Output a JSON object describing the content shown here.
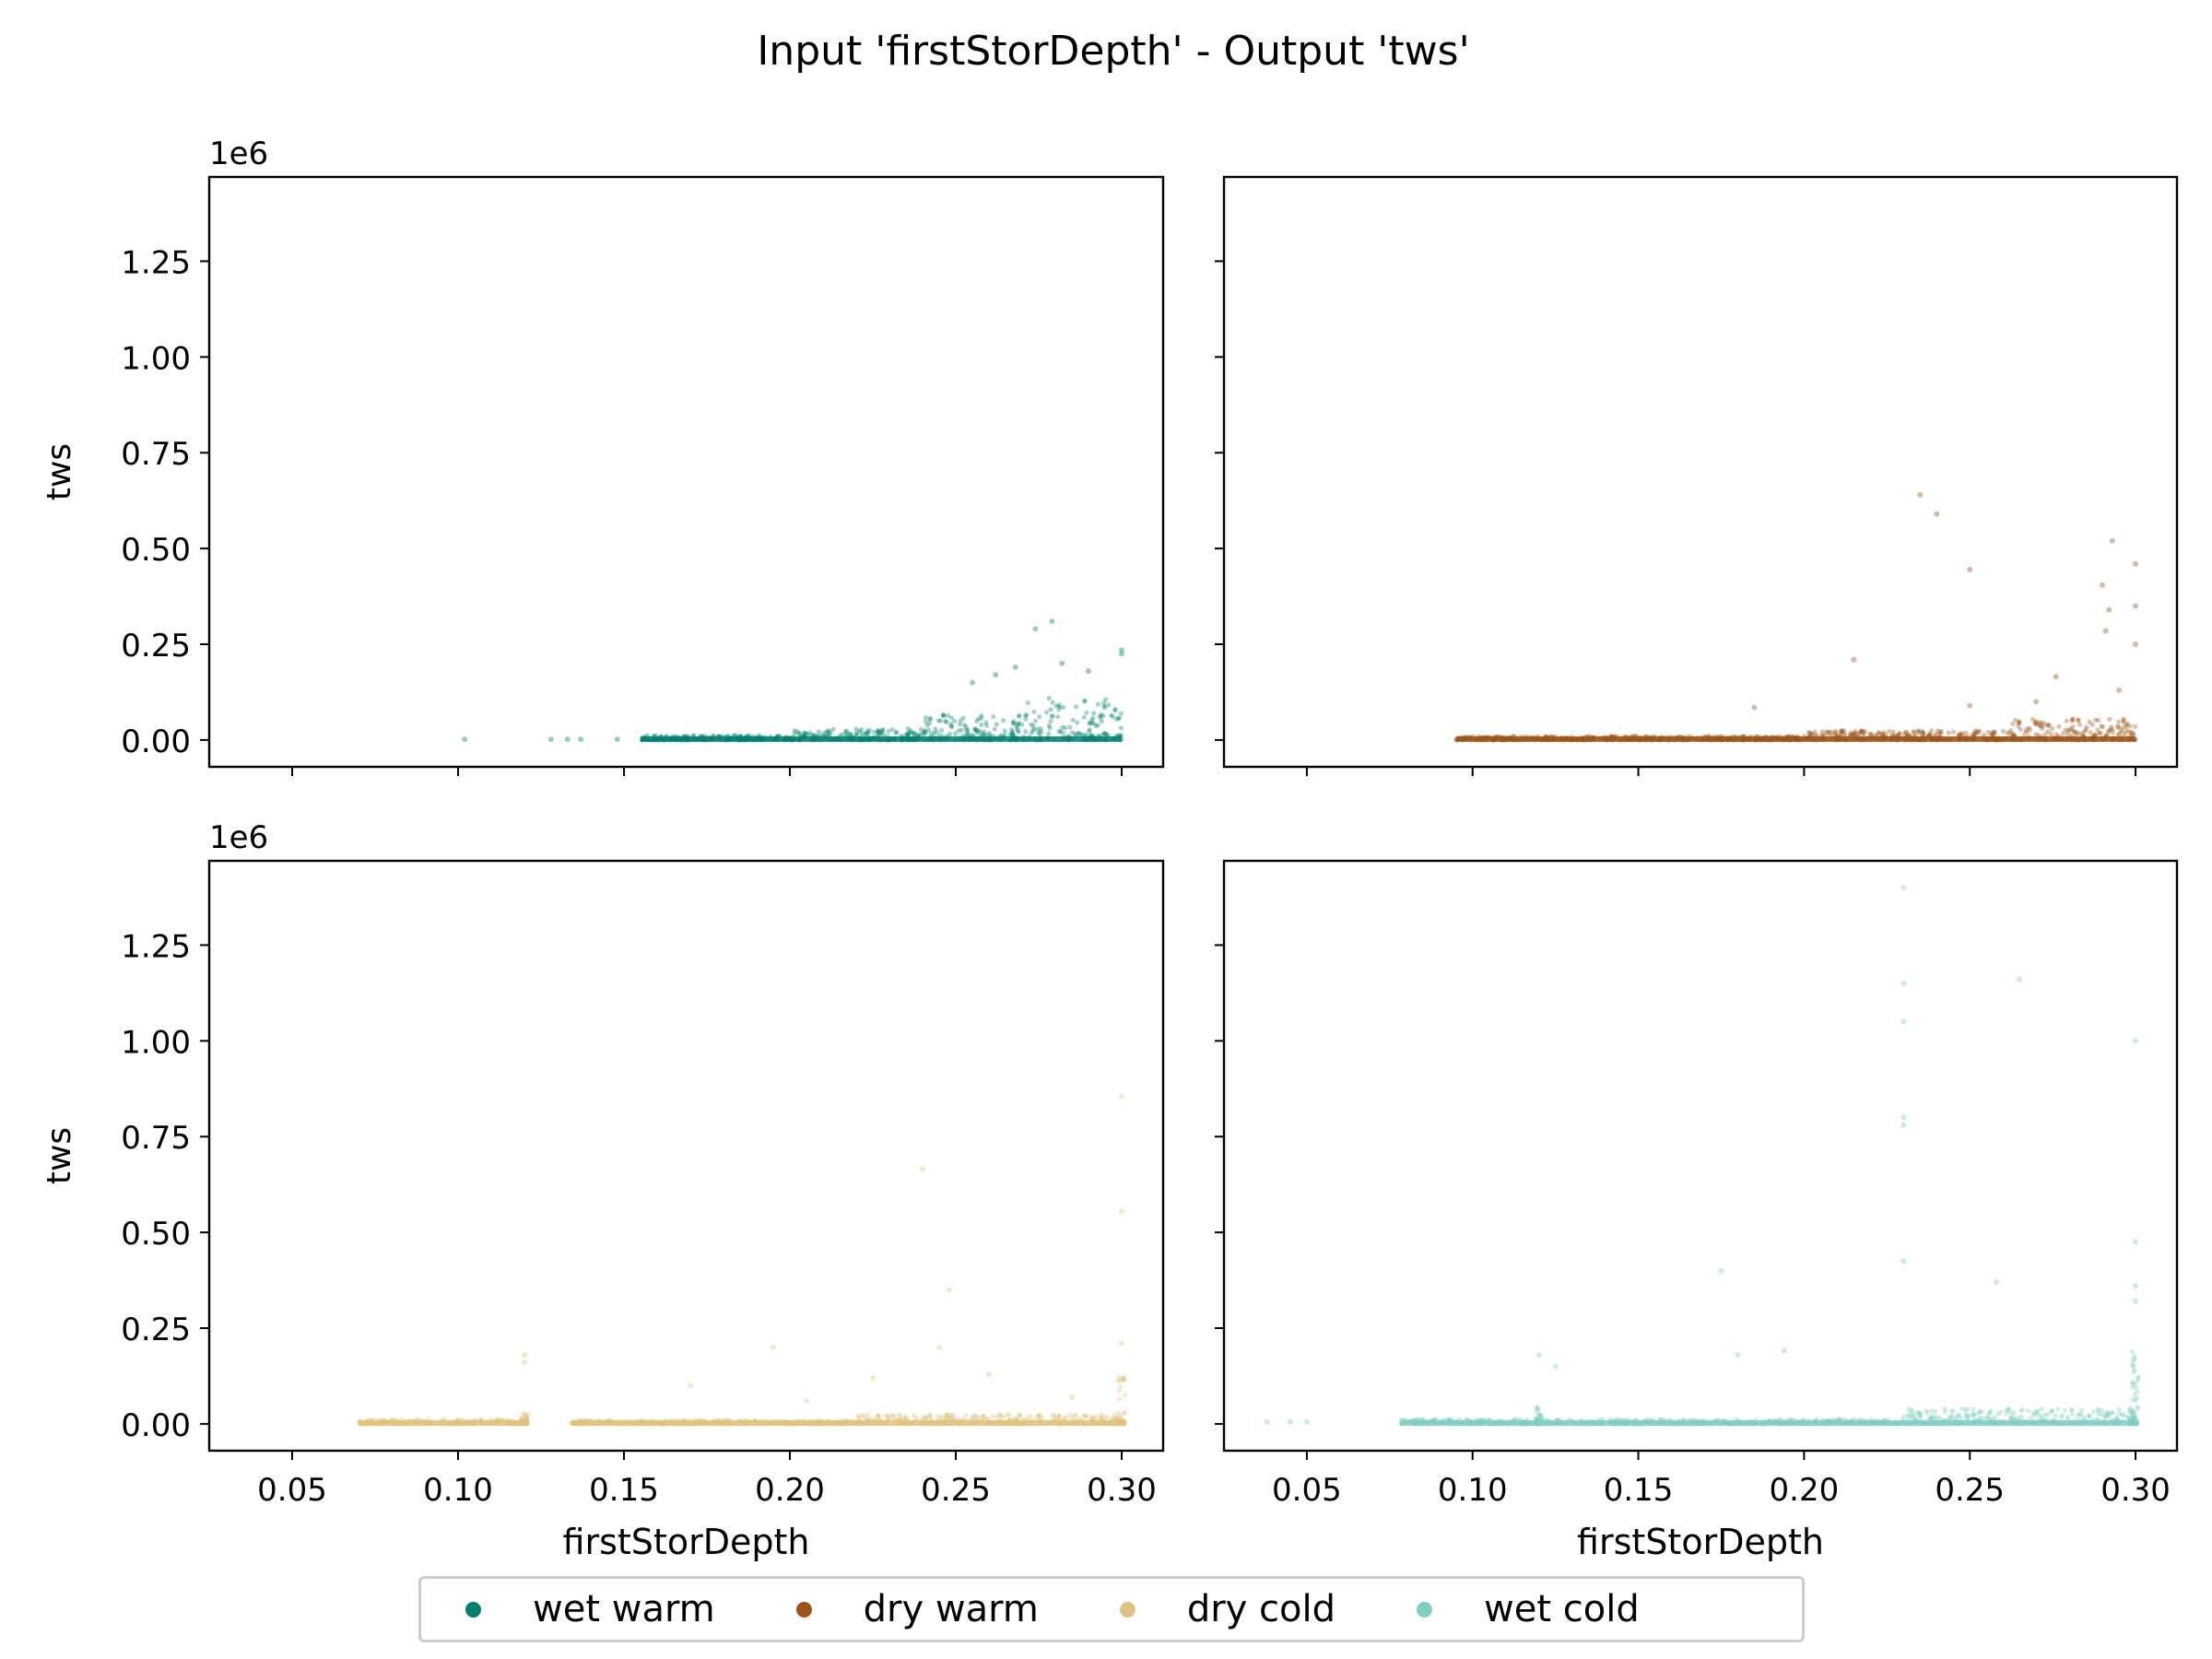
{
  "title": "Input 'firstStorDepth' - Output 'tws'",
  "colors": {
    "wet_warm": "#00806b",
    "dry_warm": "#9c5418",
    "dry_cold": "#dfc27d",
    "wet_cold": "#80cdc1"
  },
  "legend": [
    {
      "label": "wet warm",
      "color": "#00806b"
    },
    {
      "label": "dry warm",
      "color": "#9c5418"
    },
    {
      "label": "dry cold",
      "color": "#dfc27d"
    },
    {
      "label": "wet cold",
      "color": "#80cdc1"
    }
  ],
  "chart_data": {
    "type": "scatter",
    "title": "Input 'firstStorDepth' - Output 'tws'",
    "layout": "2x2 grid, shared x and y axes",
    "xlabel": "firstStorDepth",
    "ylabel": "tws",
    "y_offset_label": "1e6",
    "xlim": [
      0.025,
      0.3125
    ],
    "ylim": [
      -0.07,
      1.47
    ],
    "x_ticks": [
      0.05,
      0.1,
      0.15,
      0.2,
      0.25,
      0.3
    ],
    "x_tick_labels": [
      "0.05",
      "0.10",
      "0.15",
      "0.20",
      "0.25",
      "0.30"
    ],
    "y_ticks": [
      0.0,
      0.25,
      0.5,
      0.75,
      1.0,
      1.25
    ],
    "y_tick_labels": [
      "0.00",
      "0.25",
      "0.50",
      "0.75",
      "1.00",
      "1.25"
    ],
    "grid": false,
    "legend_position": "bottom-center",
    "panels": [
      {
        "series": "wet warm",
        "color": "#00806b",
        "density_ranges": [
          {
            "x": [
              0.155,
              0.2
            ],
            "y": [
              0.0,
              0.012
            ]
          },
          {
            "x": [
              0.2,
              0.24
            ],
            "y": [
              0.0,
              0.03
            ]
          },
          {
            "x": [
              0.24,
              0.27
            ],
            "y": [
              0.0,
              0.07
            ]
          },
          {
            "x": [
              0.27,
              0.3
            ],
            "y": [
              0.0,
              0.11
            ]
          }
        ],
        "outliers": [
          {
            "x": 0.102,
            "y": 0.002
          },
          {
            "x": 0.128,
            "y": 0.002
          },
          {
            "x": 0.133,
            "y": 0.002
          },
          {
            "x": 0.137,
            "y": 0.002
          },
          {
            "x": 0.148,
            "y": 0.002
          },
          {
            "x": 0.274,
            "y": 0.29
          },
          {
            "x": 0.279,
            "y": 0.31
          },
          {
            "x": 0.3,
            "y": 0.235
          },
          {
            "x": 0.3,
            "y": 0.225
          },
          {
            "x": 0.268,
            "y": 0.19
          },
          {
            "x": 0.282,
            "y": 0.2
          },
          {
            "x": 0.262,
            "y": 0.17
          },
          {
            "x": 0.29,
            "y": 0.18
          },
          {
            "x": 0.255,
            "y": 0.15
          }
        ]
      },
      {
        "series": "dry warm",
        "color": "#9c5418",
        "density_ranges": [
          {
            "x": [
              0.095,
              0.2
            ],
            "y": [
              0.0,
              0.01
            ]
          },
          {
            "x": [
              0.2,
              0.26
            ],
            "y": [
              0.0,
              0.025
            ]
          },
          {
            "x": [
              0.26,
              0.3
            ],
            "y": [
              0.0,
              0.055
            ]
          }
        ],
        "outliers": [
          {
            "x": 0.235,
            "y": 0.64
          },
          {
            "x": 0.24,
            "y": 0.59
          },
          {
            "x": 0.293,
            "y": 0.52
          },
          {
            "x": 0.25,
            "y": 0.445
          },
          {
            "x": 0.3,
            "y": 0.46
          },
          {
            "x": 0.3,
            "y": 0.35
          },
          {
            "x": 0.29,
            "y": 0.405
          },
          {
            "x": 0.292,
            "y": 0.34
          },
          {
            "x": 0.291,
            "y": 0.285
          },
          {
            "x": 0.3,
            "y": 0.25
          },
          {
            "x": 0.215,
            "y": 0.21
          },
          {
            "x": 0.276,
            "y": 0.165
          },
          {
            "x": 0.185,
            "y": 0.085
          },
          {
            "x": 0.25,
            "y": 0.09
          },
          {
            "x": 0.27,
            "y": 0.1
          },
          {
            "x": 0.295,
            "y": 0.13
          }
        ]
      },
      {
        "series": "dry cold",
        "color": "#dfc27d",
        "density_ranges": [
          {
            "x": [
              0.07,
              0.12
            ],
            "y": [
              0.0,
              0.012
            ]
          },
          {
            "x": [
              0.119,
              0.121
            ],
            "y": [
              0.0,
              0.03
            ]
          },
          {
            "x": [
              0.134,
              0.22
            ],
            "y": [
              0.0,
              0.01
            ]
          },
          {
            "x": [
              0.22,
              0.3
            ],
            "y": [
              0.0,
              0.025
            ]
          },
          {
            "x": [
              0.299,
              0.301
            ],
            "y": [
              0.0,
              0.13
            ]
          }
        ],
        "outliers": [
          {
            "x": 0.3,
            "y": 0.855
          },
          {
            "x": 0.24,
            "y": 0.665
          },
          {
            "x": 0.3,
            "y": 0.555
          },
          {
            "x": 0.248,
            "y": 0.35
          },
          {
            "x": 0.3,
            "y": 0.21
          },
          {
            "x": 0.195,
            "y": 0.2
          },
          {
            "x": 0.12,
            "y": 0.18
          },
          {
            "x": 0.12,
            "y": 0.16
          },
          {
            "x": 0.245,
            "y": 0.2
          },
          {
            "x": 0.26,
            "y": 0.13
          },
          {
            "x": 0.225,
            "y": 0.12
          },
          {
            "x": 0.17,
            "y": 0.1
          },
          {
            "x": 0.285,
            "y": 0.07
          },
          {
            "x": 0.205,
            "y": 0.06
          }
        ]
      },
      {
        "series": "wet cold",
        "color": "#80cdc1",
        "density_ranges": [
          {
            "x": [
              0.078,
              0.12
            ],
            "y": [
              0.0,
              0.012
            ]
          },
          {
            "x": [
              0.119,
              0.121
            ],
            "y": [
              0.0,
              0.045
            ]
          },
          {
            "x": [
              0.12,
              0.23
            ],
            "y": [
              0.0,
              0.012
            ]
          },
          {
            "x": [
              0.23,
              0.3
            ],
            "y": [
              0.0,
              0.04
            ]
          },
          {
            "x": [
              0.299,
              0.301
            ],
            "y": [
              0.0,
              0.2
            ]
          }
        ],
        "outliers": [
          {
            "x": 0.23,
            "y": 1.4
          },
          {
            "x": 0.23,
            "y": 1.15
          },
          {
            "x": 0.265,
            "y": 1.16
          },
          {
            "x": 0.23,
            "y": 1.05
          },
          {
            "x": 0.3,
            "y": 1.0
          },
          {
            "x": 0.23,
            "y": 0.8
          },
          {
            "x": 0.23,
            "y": 0.78
          },
          {
            "x": 0.3,
            "y": 0.475
          },
          {
            "x": 0.23,
            "y": 0.425
          },
          {
            "x": 0.175,
            "y": 0.4
          },
          {
            "x": 0.3,
            "y": 0.36
          },
          {
            "x": 0.258,
            "y": 0.37
          },
          {
            "x": 0.3,
            "y": 0.32
          },
          {
            "x": 0.194,
            "y": 0.19
          },
          {
            "x": 0.18,
            "y": 0.18
          },
          {
            "x": 0.12,
            "y": 0.18
          },
          {
            "x": 0.125,
            "y": 0.15
          },
          {
            "x": 0.038,
            "y": 0.005
          },
          {
            "x": 0.045,
            "y": 0.005
          },
          {
            "x": 0.05,
            "y": 0.005
          }
        ]
      }
    ]
  }
}
